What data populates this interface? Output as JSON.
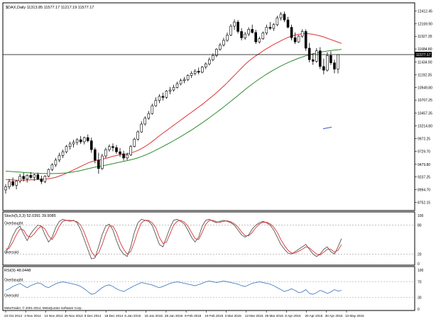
{
  "chart_data": [
    {
      "type": "candlestick",
      "symbol_header": "$DAX,Daily  11313.85 11577.17 11217.19 11577.17",
      "current_price": "11577.17",
      "price_axis_ticks": [
        "12412.45",
        "12169.90",
        "11927.35",
        "11684.80",
        "11434.90",
        "11192.35",
        "10949.80",
        "10707.25",
        "10457.35",
        "10214.80",
        "9972.25",
        "9729.70",
        "9479.80",
        "9237.25",
        "8994.70",
        "8752.15"
      ],
      "date_axis_ticks": [
        "23 Oct 2014",
        "4 Nov 2014",
        "14 Nov 2014",
        "26 Nov 2014",
        "8 Dec 2014",
        "18 Dec 2014",
        "6 Jan 2015",
        "16 Jan 2015",
        "28 Jan 2015",
        "9 Feb 2015",
        "19 Feb 2015",
        "3 Mar 2015",
        "13 Mar 2015",
        "25 Mar 2015",
        "8 Apr 2015",
        "20 Apr 2015",
        "30 Apr 2015",
        "13 May 2015"
      ],
      "ylim": [
        8650,
        12540
      ],
      "candles": [
        [
          8990,
          9100,
          8920,
          9050
        ],
        [
          9050,
          9200,
          9000,
          9150
        ],
        [
          9150,
          9230,
          9050,
          9080
        ],
        [
          9080,
          9180,
          9000,
          9160
        ],
        [
          9160,
          9300,
          9120,
          9250
        ],
        [
          9250,
          9320,
          9150,
          9200
        ],
        [
          9200,
          9290,
          9130,
          9270
        ],
        [
          9270,
          9330,
          9200,
          9230
        ],
        [
          9230,
          9300,
          9160,
          9280
        ],
        [
          9280,
          9320,
          9180,
          9200
        ],
        [
          9200,
          9260,
          9100,
          9150
        ],
        [
          9150,
          9270,
          9120,
          9250
        ],
        [
          9250,
          9400,
          9230,
          9380
        ],
        [
          9380,
          9500,
          9350,
          9470
        ],
        [
          9470,
          9600,
          9430,
          9560
        ],
        [
          9560,
          9700,
          9520,
          9650
        ],
        [
          9650,
          9760,
          9600,
          9720
        ],
        [
          9720,
          9850,
          9690,
          9820
        ],
        [
          9820,
          9910,
          9760,
          9870
        ],
        [
          9870,
          9950,
          9800,
          9900
        ],
        [
          9900,
          9980,
          9850,
          9950
        ],
        [
          9950,
          10020,
          9870,
          9910
        ],
        [
          9910,
          10010,
          9860,
          9990
        ],
        [
          9990,
          10050,
          9900,
          9930
        ],
        [
          9930,
          9990,
          9700,
          9760
        ],
        [
          9760,
          9800,
          9500,
          9560
        ],
        [
          9560,
          9700,
          9300,
          9400
        ],
        [
          9400,
          9680,
          9370,
          9640
        ],
        [
          9640,
          9800,
          9600,
          9760
        ],
        [
          9760,
          9860,
          9720,
          9820
        ],
        [
          9820,
          9880,
          9730,
          9800
        ],
        [
          9800,
          9850,
          9680,
          9720
        ],
        [
          9720,
          9790,
          9620,
          9680
        ],
        [
          9680,
          9740,
          9550,
          9600
        ],
        [
          9600,
          9700,
          9560,
          9660
        ],
        [
          9660,
          9850,
          9640,
          9820
        ],
        [
          9820,
          9990,
          9800,
          9960
        ],
        [
          9960,
          10130,
          9930,
          10100
        ],
        [
          10100,
          10300,
          10080,
          10250
        ],
        [
          10250,
          10400,
          10220,
          10360
        ],
        [
          10360,
          10500,
          10330,
          10450
        ],
        [
          10450,
          10640,
          10430,
          10600
        ],
        [
          10600,
          10760,
          10580,
          10700
        ],
        [
          10700,
          10820,
          10650,
          10780
        ],
        [
          10780,
          10850,
          10700,
          10760
        ],
        [
          10760,
          10900,
          10730,
          10880
        ],
        [
          10880,
          10960,
          10820,
          10900
        ],
        [
          10900,
          11000,
          10870,
          10950
        ],
        [
          10950,
          11060,
          10930,
          11020
        ],
        [
          11020,
          11120,
          10990,
          11080
        ],
        [
          11080,
          11150,
          11030,
          11100
        ],
        [
          11100,
          11200,
          11070,
          11180
        ],
        [
          11180,
          11260,
          11130,
          11220
        ],
        [
          11220,
          11300,
          11180,
          11260
        ],
        [
          11260,
          11330,
          11200,
          11240
        ],
        [
          11240,
          11360,
          11220,
          11340
        ],
        [
          11340,
          11430,
          11300,
          11400
        ],
        [
          11400,
          11520,
          11370,
          11480
        ],
        [
          11480,
          11600,
          11450,
          11560
        ],
        [
          11560,
          11700,
          11530,
          11680
        ],
        [
          11680,
          11800,
          11650,
          11760
        ],
        [
          11760,
          11900,
          11730,
          11850
        ],
        [
          11850,
          12000,
          11820,
          11950
        ],
        [
          11950,
          12160,
          11930,
          12120
        ],
        [
          12120,
          12250,
          12050,
          12200
        ],
        [
          12200,
          12240,
          11980,
          12020
        ],
        [
          12020,
          12080,
          11850,
          11900
        ],
        [
          11900,
          12010,
          11860,
          11970
        ],
        [
          11970,
          12100,
          11930,
          12060
        ],
        [
          12060,
          12150,
          11980,
          12000
        ],
        [
          12000,
          12050,
          11780,
          11820
        ],
        [
          11820,
          11920,
          11790,
          11880
        ],
        [
          11880,
          12020,
          11860,
          11990
        ],
        [
          11990,
          12150,
          11950,
          12100
        ],
        [
          12100,
          12200,
          12050,
          12080
        ],
        [
          12080,
          12180,
          12030,
          12150
        ],
        [
          12150,
          12320,
          12120,
          12280
        ],
        [
          12280,
          12390,
          12230,
          12350
        ],
        [
          12350,
          12400,
          12200,
          12240
        ],
        [
          12240,
          12300,
          12080,
          12100
        ],
        [
          12100,
          12150,
          11850,
          11900
        ],
        [
          11900,
          12000,
          11780,
          11820
        ],
        [
          11820,
          11950,
          11800,
          11930
        ],
        [
          11930,
          12060,
          11900,
          12020
        ],
        [
          12020,
          12060,
          11650,
          11700
        ],
        [
          11700,
          11800,
          11430,
          11480
        ],
        [
          11480,
          11600,
          11380,
          11450
        ],
        [
          11450,
          11700,
          11420,
          11650
        ],
        [
          11650,
          11720,
          11300,
          11350
        ],
        [
          11350,
          11500,
          11200,
          11280
        ],
        [
          11280,
          11620,
          11250,
          11560
        ],
        [
          11560,
          11640,
          11380,
          11420
        ],
        [
          11420,
          11480,
          11220,
          11300
        ],
        [
          11300,
          11577,
          11217,
          11577
        ]
      ],
      "series": [
        {
          "name": "red moving average",
          "color": "#dd3333",
          "values": [
            9190,
            9185,
            9180,
            9176,
            9175,
            9176,
            9178,
            9182,
            9186,
            9190,
            9193,
            9198,
            9205,
            9216,
            9232,
            9255,
            9280,
            9310,
            9340,
            9372,
            9405,
            9440,
            9472,
            9505,
            9530,
            9550,
            9562,
            9575,
            9592,
            9612,
            9632,
            9648,
            9662,
            9672,
            9682,
            9698,
            9718,
            9745,
            9780,
            9820,
            9865,
            9915,
            9970,
            10025,
            10075,
            10125,
            10175,
            10225,
            10275,
            10325,
            10375,
            10425,
            10475,
            10525,
            10575,
            10625,
            10680,
            10735,
            10790,
            10850,
            10910,
            10975,
            11040,
            11110,
            11180,
            11250,
            11320,
            11390,
            11450,
            11505,
            11555,
            11600,
            11645,
            11690,
            11730,
            11770,
            11805,
            11840,
            11875,
            11905,
            11930,
            11950,
            11965,
            11975,
            11980,
            11975,
            11965,
            11950,
            11935,
            11915,
            11890,
            11865,
            11840,
            11815,
            11790
          ]
        },
        {
          "name": "green moving average",
          "color": "#2e8b2e",
          "values": [
            9350,
            9345,
            9340,
            9335,
            9330,
            9325,
            9320,
            9316,
            9312,
            9308,
            9305,
            9303,
            9302,
            9302,
            9303,
            9306,
            9310,
            9316,
            9324,
            9334,
            9346,
            9360,
            9376,
            9394,
            9410,
            9425,
            9438,
            9450,
            9463,
            9477,
            9492,
            9507,
            9522,
            9536,
            9550,
            9566,
            9584,
            9604,
            9628,
            9655,
            9684,
            9716,
            9750,
            9785,
            9820,
            9856,
            9893,
            9931,
            9970,
            10010,
            10050,
            10092,
            10135,
            10180,
            10226,
            10273,
            10321,
            10370,
            10420,
            10471,
            10523,
            10576,
            10630,
            10685,
            10740,
            10796,
            10852,
            10908,
            10962,
            11014,
            11064,
            11112,
            11158,
            11202,
            11244,
            11284,
            11322,
            11358,
            11392,
            11424,
            11454,
            11482,
            11508,
            11532,
            11554,
            11574,
            11592,
            11608,
            11622,
            11635,
            11646,
            11656,
            11664,
            11670,
            11676
          ]
        }
      ],
      "drawn_trendline": {
        "color": "#3355cc",
        "from_price": 10160,
        "to_price": 10190
      }
    },
    {
      "type": "line",
      "indicator_label": "Stoch(5,3,3) 52.0391 39.9085",
      "levels": [
        {
          "label": "Overbought",
          "value": 80
        },
        {
          "label": "Oversold",
          "value": 20
        }
      ],
      "axis_ticks": [
        "100",
        "80",
        "20",
        "0"
      ],
      "ylim": [
        0,
        100
      ],
      "series": [
        {
          "name": "%K",
          "color": "#555555",
          "values": [
            22,
            38,
            58,
            72,
            78,
            62,
            48,
            62,
            72,
            80,
            78,
            60,
            45,
            55,
            75,
            88,
            92,
            90,
            88,
            90,
            85,
            70,
            50,
            30,
            10,
            12,
            35,
            60,
            78,
            82,
            70,
            48,
            30,
            20,
            15,
            35,
            65,
            85,
            92,
            90,
            88,
            80,
            60,
            40,
            35,
            55,
            75,
            90,
            92,
            88,
            82,
            70,
            55,
            45,
            55,
            78,
            90,
            92,
            88,
            85,
            88,
            90,
            88,
            85,
            80,
            70,
            60,
            55,
            60,
            72,
            80,
            85,
            88,
            85,
            80,
            70,
            55,
            40,
            30,
            22,
            20,
            25,
            30,
            35,
            40,
            30,
            20,
            15,
            20,
            30,
            35,
            25,
            20,
            35,
            52
          ]
        },
        {
          "name": "%D",
          "color": "#dd3333",
          "values": [
            30,
            32,
            45,
            60,
            72,
            70,
            58,
            55,
            62,
            72,
            78,
            72,
            58,
            50,
            62,
            78,
            88,
            90,
            90,
            89,
            87,
            80,
            65,
            45,
            25,
            15,
            22,
            40,
            62,
            78,
            78,
            65,
            45,
            30,
            20,
            25,
            45,
            68,
            85,
            90,
            90,
            85,
            75,
            55,
            42,
            45,
            62,
            80,
            88,
            90,
            86,
            78,
            65,
            52,
            50,
            65,
            82,
            90,
            90,
            87,
            86,
            88,
            89,
            87,
            83,
            76,
            66,
            58,
            58,
            65,
            75,
            82,
            86,
            86,
            83,
            76,
            65,
            50,
            38,
            28,
            22,
            22,
            26,
            30,
            35,
            33,
            26,
            20,
            18,
            24,
            30,
            30,
            24,
            28,
            40
          ]
        }
      ]
    },
    {
      "type": "line",
      "indicator_label": "RSI(9) 48.0448",
      "levels": [
        {
          "label": "Overbought",
          "value": 70
        },
        {
          "label": "Oversold",
          "value": 30
        }
      ],
      "axis_ticks": [
        "100",
        "70",
        "30",
        "0"
      ],
      "ylim": [
        0,
        100
      ],
      "series": [
        {
          "name": "RSI",
          "color": "#4a7fc0",
          "values": [
            48,
            52,
            58,
            62,
            66,
            60,
            55,
            60,
            64,
            67,
            65,
            58,
            55,
            60,
            65,
            68,
            70,
            68,
            66,
            64,
            62,
            58,
            52,
            45,
            38,
            40,
            48,
            55,
            60,
            62,
            58,
            52,
            48,
            45,
            50,
            55,
            60,
            64,
            68,
            66,
            64,
            62,
            58,
            55,
            58,
            62,
            66,
            68,
            70,
            68,
            66,
            64,
            62,
            60,
            63,
            66,
            70,
            72,
            70,
            68,
            70,
            72,
            70,
            68,
            66,
            64,
            60,
            58,
            62,
            66,
            68,
            70,
            68,
            66,
            64,
            60,
            55,
            50,
            45,
            48,
            52,
            48,
            42,
            44,
            50,
            40,
            38,
            42,
            48,
            45,
            40,
            44,
            50,
            46,
            48
          ]
        }
      ]
    }
  ],
  "copyright": "MetaTrader, © 2001-2014, MetaQuotes Software Corp."
}
